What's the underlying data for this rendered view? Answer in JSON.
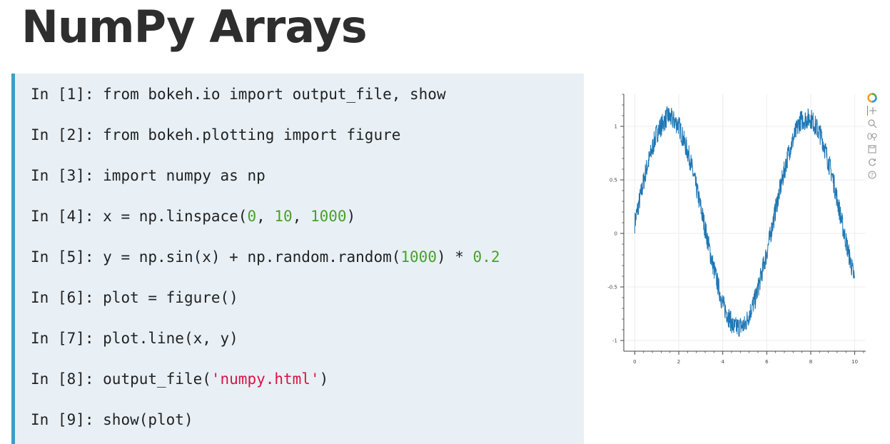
{
  "page": {
    "title": "NumPy Arrays"
  },
  "code": {
    "lines": [
      {
        "prompt": "In [1]: ",
        "parts": [
          {
            "t": "from bokeh.io import output_file, show",
            "k": "plain"
          }
        ]
      },
      {
        "prompt": "In [2]: ",
        "parts": [
          {
            "t": "from bokeh.plotting import figure",
            "k": "plain"
          }
        ]
      },
      {
        "prompt": "In [3]: ",
        "parts": [
          {
            "t": "import numpy as np",
            "k": "plain"
          }
        ]
      },
      {
        "prompt": "In [4]: ",
        "parts": [
          {
            "t": "x = np.linspace(",
            "k": "plain"
          },
          {
            "t": "0",
            "k": "num"
          },
          {
            "t": ", ",
            "k": "plain"
          },
          {
            "t": "10",
            "k": "num"
          },
          {
            "t": ", ",
            "k": "plain"
          },
          {
            "t": "1000",
            "k": "num"
          },
          {
            "t": ")",
            "k": "plain"
          }
        ]
      },
      {
        "prompt": "In [5]: ",
        "parts": [
          {
            "t": "y = np.sin(x) + np.random.random(",
            "k": "plain"
          },
          {
            "t": "1000",
            "k": "num"
          },
          {
            "t": ") * ",
            "k": "plain"
          },
          {
            "t": "0.2",
            "k": "num"
          }
        ]
      },
      {
        "prompt": "In [6]: ",
        "parts": [
          {
            "t": "plot = figure()",
            "k": "plain"
          }
        ]
      },
      {
        "prompt": "In [7]: ",
        "parts": [
          {
            "t": "plot.line(x, y)",
            "k": "plain"
          }
        ]
      },
      {
        "prompt": "In [8]: ",
        "parts": [
          {
            "t": "output_file(",
            "k": "plain"
          },
          {
            "t": "'numpy.html'",
            "k": "str"
          },
          {
            "t": ")",
            "k": "plain"
          }
        ]
      },
      {
        "prompt": "In [9]: ",
        "parts": [
          {
            "t": "show(plot)",
            "k": "plain"
          }
        ]
      }
    ],
    "colors": {
      "number": "#4aa02c",
      "string": "#dd1144",
      "accent": "#3aa0c8"
    }
  },
  "toolbar": {
    "tools": [
      "bokeh-logo-icon",
      "pan-icon",
      "box-zoom-icon",
      "wheel-zoom-icon",
      "save-icon",
      "reset-icon",
      "help-icon"
    ]
  },
  "chart_data": {
    "type": "line",
    "series_color": "#1f77b4",
    "xlim": [
      -0.5,
      10.5
    ],
    "ylim": [
      -1.1,
      1.3
    ],
    "xticks": [
      0,
      2,
      4,
      6,
      8,
      10
    ],
    "yticks": [
      -1,
      -0.5,
      0,
      0.5,
      1
    ],
    "xtick_labels": [
      "0",
      "2",
      "4",
      "6",
      "8",
      "10"
    ],
    "ytick_labels": [
      "-1",
      "-0.5",
      "0",
      "0.5",
      "1"
    ],
    "grid": true,
    "series": [
      {
        "x": [
          0,
          0.5,
          1,
          1.5,
          2,
          2.5,
          3,
          3.5,
          4,
          4.5,
          5,
          5.5,
          6,
          6.5,
          7,
          7.5,
          8,
          8.5,
          9,
          9.5,
          10
        ],
        "y": [
          0.1,
          0.58,
          0.94,
          1.1,
          1.01,
          0.7,
          0.24,
          -0.25,
          -0.66,
          -0.88,
          -0.86,
          -0.6,
          -0.18,
          0.32,
          0.76,
          1.05,
          1.08,
          0.9,
          0.52,
          0.02,
          -0.44
        ],
        "noise_amplitude": 0.2
      }
    ]
  }
}
